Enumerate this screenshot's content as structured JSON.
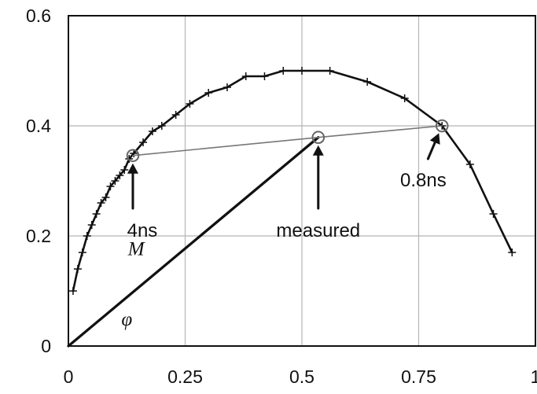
{
  "chart_data": {
    "type": "line",
    "title": "",
    "xlabel": "",
    "ylabel": "",
    "xlim": [
      0,
      1
    ],
    "ylim": [
      0,
      0.6
    ],
    "xticks": [
      "0",
      "0.25",
      "0.5",
      "0.75",
      "1"
    ],
    "yticks": [
      "0",
      "0.2",
      "0.4",
      "0.6"
    ],
    "xtick_values": [
      0,
      0.25,
      0.5,
      0.75,
      1
    ],
    "ytick_values": [
      0,
      0.2,
      0.4,
      0.6
    ],
    "grid": true,
    "series": [
      {
        "kind": "curve-with-cross-markers",
        "x": [
          0.01,
          0.02,
          0.03,
          0.04,
          0.05,
          0.06,
          0.07,
          0.08,
          0.09,
          0.1,
          0.11,
          0.12,
          0.13,
          0.14,
          0.16,
          0.18,
          0.2,
          0.23,
          0.26,
          0.3,
          0.34,
          0.38,
          0.42,
          0.46,
          0.5,
          0.56,
          0.64,
          0.72,
          0.8,
          0.86,
          0.91,
          0.95
        ],
        "y": [
          0.1,
          0.14,
          0.17,
          0.2,
          0.22,
          0.24,
          0.26,
          0.27,
          0.29,
          0.3,
          0.31,
          0.32,
          0.34,
          0.35,
          0.37,
          0.39,
          0.4,
          0.42,
          0.44,
          0.46,
          0.47,
          0.49,
          0.49,
          0.5,
          0.5,
          0.5,
          0.48,
          0.45,
          0.4,
          0.33,
          0.24,
          0.17
        ]
      },
      {
        "kind": "straight-line",
        "x": [
          0,
          0.535
        ],
        "y": [
          0,
          0.379
        ]
      },
      {
        "kind": "thin-line",
        "x": [
          0.138,
          0.535,
          0.8
        ],
        "y": [
          0.346,
          0.379,
          0.4
        ]
      }
    ],
    "points": [
      {
        "name": "4ns",
        "x": 0.138,
        "y": 0.346
      },
      {
        "name": "measured",
        "x": 0.535,
        "y": 0.379
      },
      {
        "name": "0.8ns",
        "x": 0.8,
        "y": 0.4
      }
    ],
    "annotations": [
      {
        "id": "4ns",
        "text": "4ns",
        "target_x": 0.138,
        "target_y": 0.346,
        "from_x": 0.138,
        "from_y": 0.25
      },
      {
        "id": "measured",
        "text": "measured",
        "target_x": 0.535,
        "target_y": 0.379,
        "from_x": 0.535,
        "from_y": 0.25
      },
      {
        "id": "0.8ns",
        "text": "0.8ns",
        "target_x": 0.8,
        "target_y": 0.4,
        "from_x": 0.77,
        "from_y": 0.34
      }
    ],
    "labels": {
      "M": "M",
      "phi": "φ"
    }
  }
}
